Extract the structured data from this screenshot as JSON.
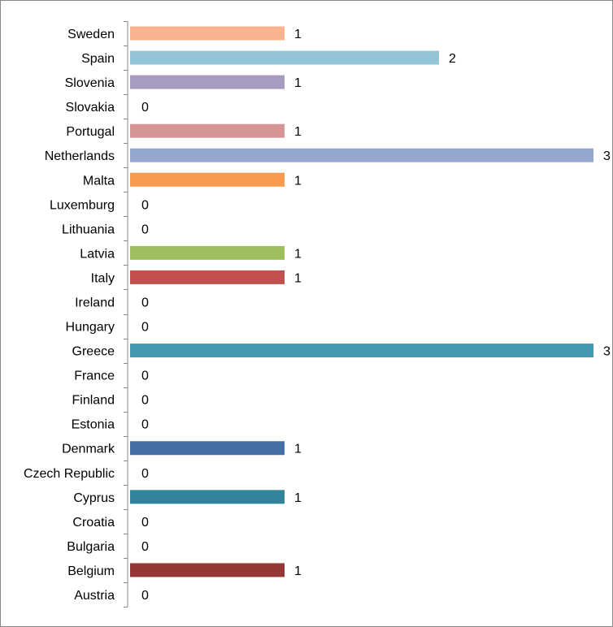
{
  "chart_data": {
    "type": "bar",
    "orientation": "horizontal",
    "title": "",
    "xlabel": "",
    "ylabel": "",
    "xlim": [
      0,
      3
    ],
    "grid": false,
    "legend": "none",
    "categories": [
      "Sweden",
      "Spain",
      "Slovenia",
      "Slovakia",
      "Portugal",
      "Netherlands",
      "Malta",
      "Luxemburg",
      "Lithuania",
      "Latvia",
      "Italy",
      "Ireland",
      "Hungary",
      "Greece",
      "France",
      "Finland",
      "Estonia",
      "Denmark",
      "Czech Republic",
      "Cyprus",
      "Croatia",
      "Bulgaria",
      "Belgium",
      "Austria"
    ],
    "values": [
      1,
      2,
      1,
      0,
      1,
      3,
      1,
      0,
      0,
      1,
      1,
      0,
      0,
      3,
      0,
      0,
      0,
      1,
      0,
      1,
      0,
      0,
      1,
      0
    ],
    "colors": [
      "#FAB38F",
      "#93C4D5",
      "#A89BC0",
      "#D4D4D4",
      "#D59594",
      "#95A7D1",
      "#F89A4F",
      "#D4D4D4",
      "#D4D4D4",
      "#9FBF5F",
      "#C4504E",
      "#D4D4D4",
      "#D4D4D4",
      "#4198AF",
      "#D4D4D4",
      "#D4D4D4",
      "#D4D4D4",
      "#4470A6",
      "#D4D4D4",
      "#31849B",
      "#D4D4D4",
      "#D4D4D4",
      "#953735",
      "#D4D4D4"
    ],
    "data_labels": [
      "1",
      "2",
      "1",
      "0",
      "1",
      "3",
      "1",
      "0",
      "0",
      "1",
      "1",
      "0",
      "0",
      "3",
      "0",
      "0",
      "0",
      "1",
      "0",
      "1",
      "0",
      "0",
      "1",
      "0"
    ]
  }
}
